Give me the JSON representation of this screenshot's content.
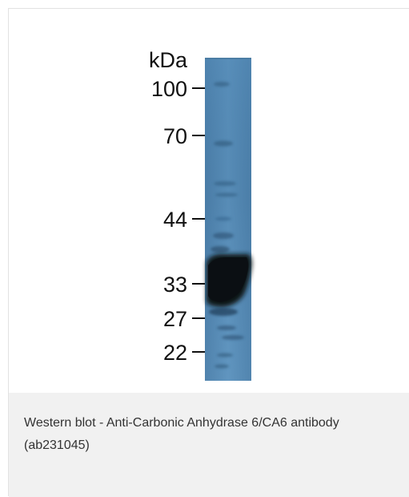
{
  "figure": {
    "unit_label": "kDa",
    "markers": [
      {
        "label": "100",
        "kda": 100
      },
      {
        "label": "70",
        "kda": 70
      },
      {
        "label": "44",
        "kda": 44
      },
      {
        "label": "33",
        "kda": 33
      },
      {
        "label": "27",
        "kda": 27
      },
      {
        "label": "22",
        "kda": 22
      }
    ],
    "lane_color": "#5d8fb8",
    "band_color": "#101418"
  },
  "caption": {
    "text": "Western blot - Anti-Carbonic Anhydrase 6/CA6 antibody (ab231045)"
  }
}
